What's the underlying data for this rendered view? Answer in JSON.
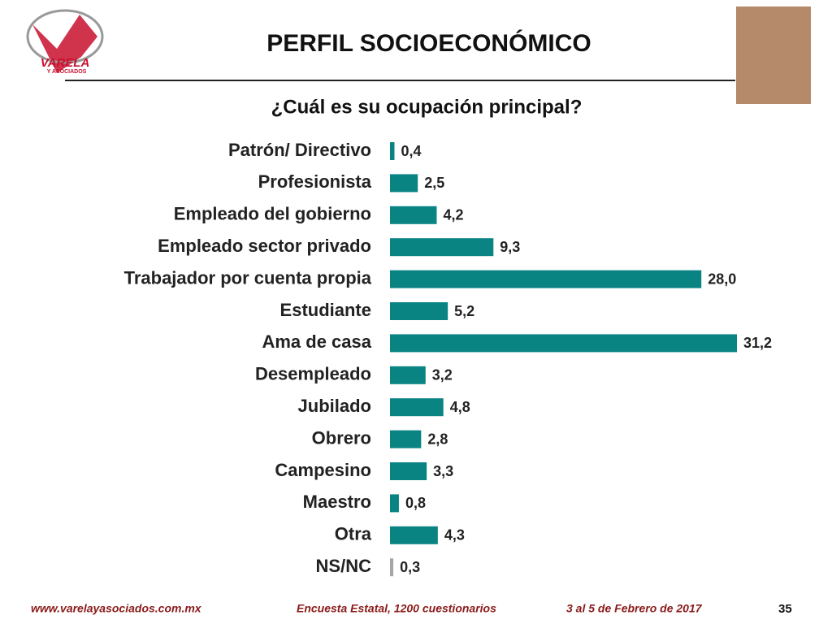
{
  "logo": {
    "name": "VARELA",
    "subname": "Y ASOCIADOS"
  },
  "chart_data": {
    "type": "bar",
    "orientation": "horizontal",
    "title": "PERFIL SOCIOECONÓMICO",
    "subtitle": "¿Cuál es su ocupación principal?",
    "categories": [
      "Patrón/ Directivo",
      "Profesionista",
      "Empleado del gobierno",
      "Empleado sector privado",
      "Trabajador por cuenta propia",
      "Estudiante",
      "Ama de casa",
      "Desempleado",
      "Jubilado",
      "Obrero",
      "Campesino",
      "Maestro",
      "Otra",
      "NS/NC"
    ],
    "values": [
      0.4,
      2.5,
      4.2,
      9.3,
      28.0,
      5.2,
      31.2,
      3.2,
      4.8,
      2.8,
      3.3,
      0.8,
      4.3,
      0.3
    ],
    "value_labels": [
      "0,4",
      "2,5",
      "4,2",
      "9,3",
      "28,0",
      "5,2",
      "31,2",
      "3,2",
      "4,8",
      "2,8",
      "3,3",
      "0,8",
      "4,3",
      "0,3"
    ],
    "colors": [
      "#0a8383",
      "#0a8383",
      "#0a8383",
      "#0a8383",
      "#0a8383",
      "#0a8383",
      "#0a8383",
      "#0a8383",
      "#0a8383",
      "#0a8383",
      "#0a8383",
      "#0a8383",
      "#0a8383",
      "#a6a6a6"
    ]
  },
  "footer": {
    "website": "www.varelayasociados.com.mx",
    "survey": "Encuesta Estatal, 1200 cuestionarios",
    "date": "3 al 5 de Febrero de 2017",
    "page": "35"
  }
}
